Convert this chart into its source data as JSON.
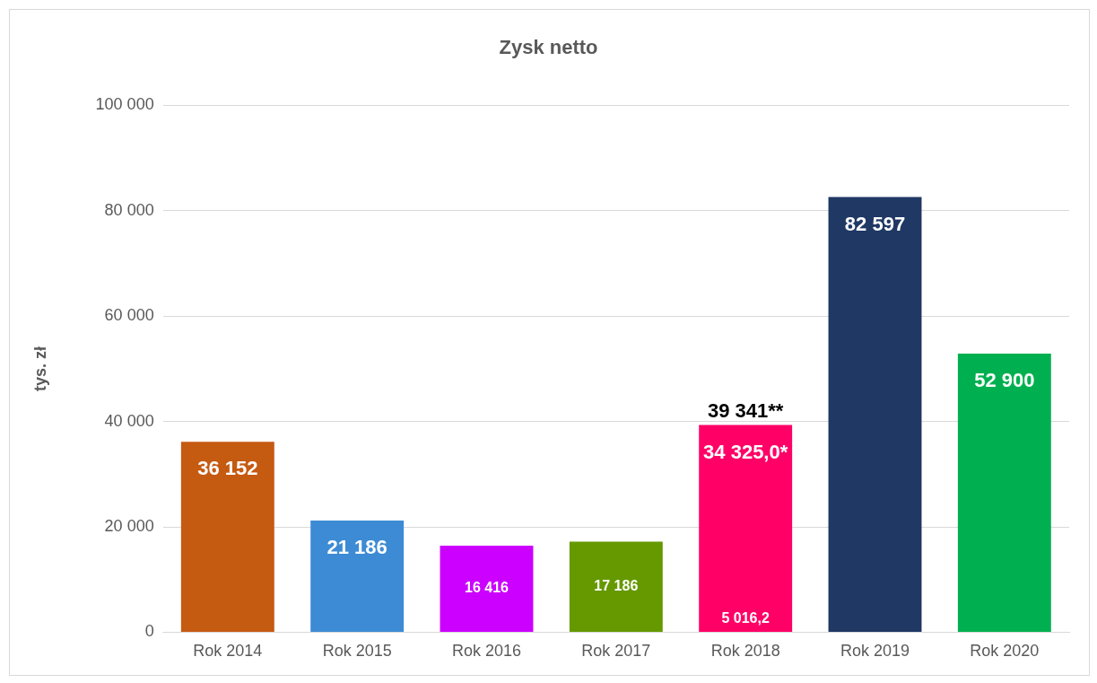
{
  "chart_data": {
    "type": "bar",
    "title": "Zysk netto",
    "ylabel": "tys. zł",
    "stacked": true,
    "grid": "y",
    "legend": false,
    "categories": [
      "Rok 2014",
      "Rok 2015",
      "Rok 2016",
      "Rok 2017",
      "Rok 2018",
      "Rok 2019",
      "Rok 2020"
    ],
    "series": [
      {
        "colors": [
          "#c55a11",
          "#3d8bd4",
          "#cc00ff",
          "#669900",
          "#ff0066",
          "#1f3864",
          "#00b050"
        ],
        "values": [
          36152,
          21186,
          16416,
          17186,
          5016.2,
          82597,
          52900
        ],
        "value_labels": [
          "36 152",
          "21 186",
          "16 416",
          "17 186",
          "5 016,2",
          "82 597",
          "52 900"
        ]
      },
      {
        "colors": [
          "#ff0066",
          "#ff0066",
          "#ff0066",
          "#ff0066",
          "#ff0066",
          "#ff0066",
          "#ff0066"
        ],
        "values": [
          null,
          null,
          null,
          null,
          34325.0,
          null,
          null
        ],
        "value_labels": [
          null,
          null,
          null,
          null,
          "34 325,0*",
          null,
          null
        ]
      }
    ],
    "totals": [
      null,
      null,
      null,
      null,
      "39 341**",
      null,
      null
    ],
    "ylim": [
      0,
      100000
    ],
    "yticks": [
      {
        "value": 0,
        "label": "0"
      },
      {
        "value": 20000,
        "label": "20 000"
      },
      {
        "value": 40000,
        "label": "40 000"
      },
      {
        "value": 60000,
        "label": "60 000"
      },
      {
        "value": 80000,
        "label": "80 000"
      },
      {
        "value": 100000,
        "label": "100 000"
      }
    ]
  }
}
